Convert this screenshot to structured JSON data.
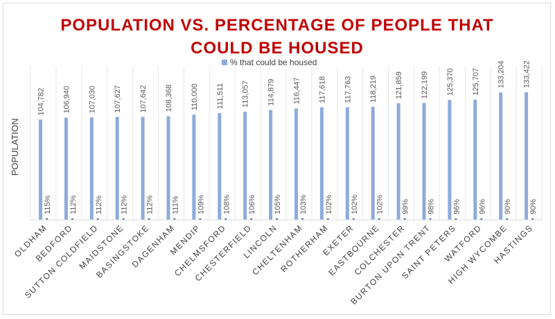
{
  "chart_data": {
    "type": "bar",
    "title_lines": [
      "POPULATION VS. PERCENTAGE OF PEOPLE THAT",
      "COULD BE HOUSED"
    ],
    "ylabel": "POPULATION",
    "legend_position": "top",
    "grid": "vertical",
    "categories": [
      "OLDHAM",
      "BEDFORD",
      "SUTTON COLDFIELD",
      "MAIDSTONE",
      "BASINGSTOKE",
      "DAGENHAM",
      "MENDIP",
      "CHELMSFORD",
      "CHESTERFIELD",
      "LINCOLN",
      "CHELTENHAM",
      "ROTHERHAM",
      "EXETER",
      "EASTBOURNE",
      "COLCHESTER",
      "BURTON UPON TRENT",
      "SAINT PETERS",
      "WATFORD",
      "HIGH WYCOMBE",
      "HASTINGS"
    ],
    "series": [
      {
        "values": [
          104782,
          106940,
          107030,
          107627,
          107642,
          108368,
          110000,
          111511,
          113057,
          114879,
          116447,
          117618,
          117763,
          118219,
          121859,
          122199,
          125370,
          125707,
          133204,
          133422
        ],
        "labels": [
          "104,782",
          "106,940",
          "107,030",
          "107,627",
          "107,642",
          "108,368",
          "110,000",
          "111,511",
          "113,057",
          "114,879",
          "116,447",
          "117,618",
          "117,763",
          "118,219",
          "121,859",
          "122,199",
          "125,370",
          "125,707",
          "133,204",
          "133,422"
        ],
        "color": "#8faadc"
      },
      {
        "name": "% that could be housed",
        "values": [
          115,
          112,
          112,
          112,
          112,
          111,
          109,
          108,
          106,
          105,
          103,
          102,
          102,
          102,
          99,
          98,
          96,
          96,
          90,
          90
        ],
        "labels": [
          "115%",
          "112%",
          "112%",
          "112%",
          "112%",
          "111%",
          "109%",
          "108%",
          "106%",
          "105%",
          "103%",
          "102%",
          "102%",
          "102%",
          "99%",
          "98%",
          "96%",
          "96%",
          "90%",
          "90%"
        ],
        "color": "#2f5597"
      }
    ]
  }
}
